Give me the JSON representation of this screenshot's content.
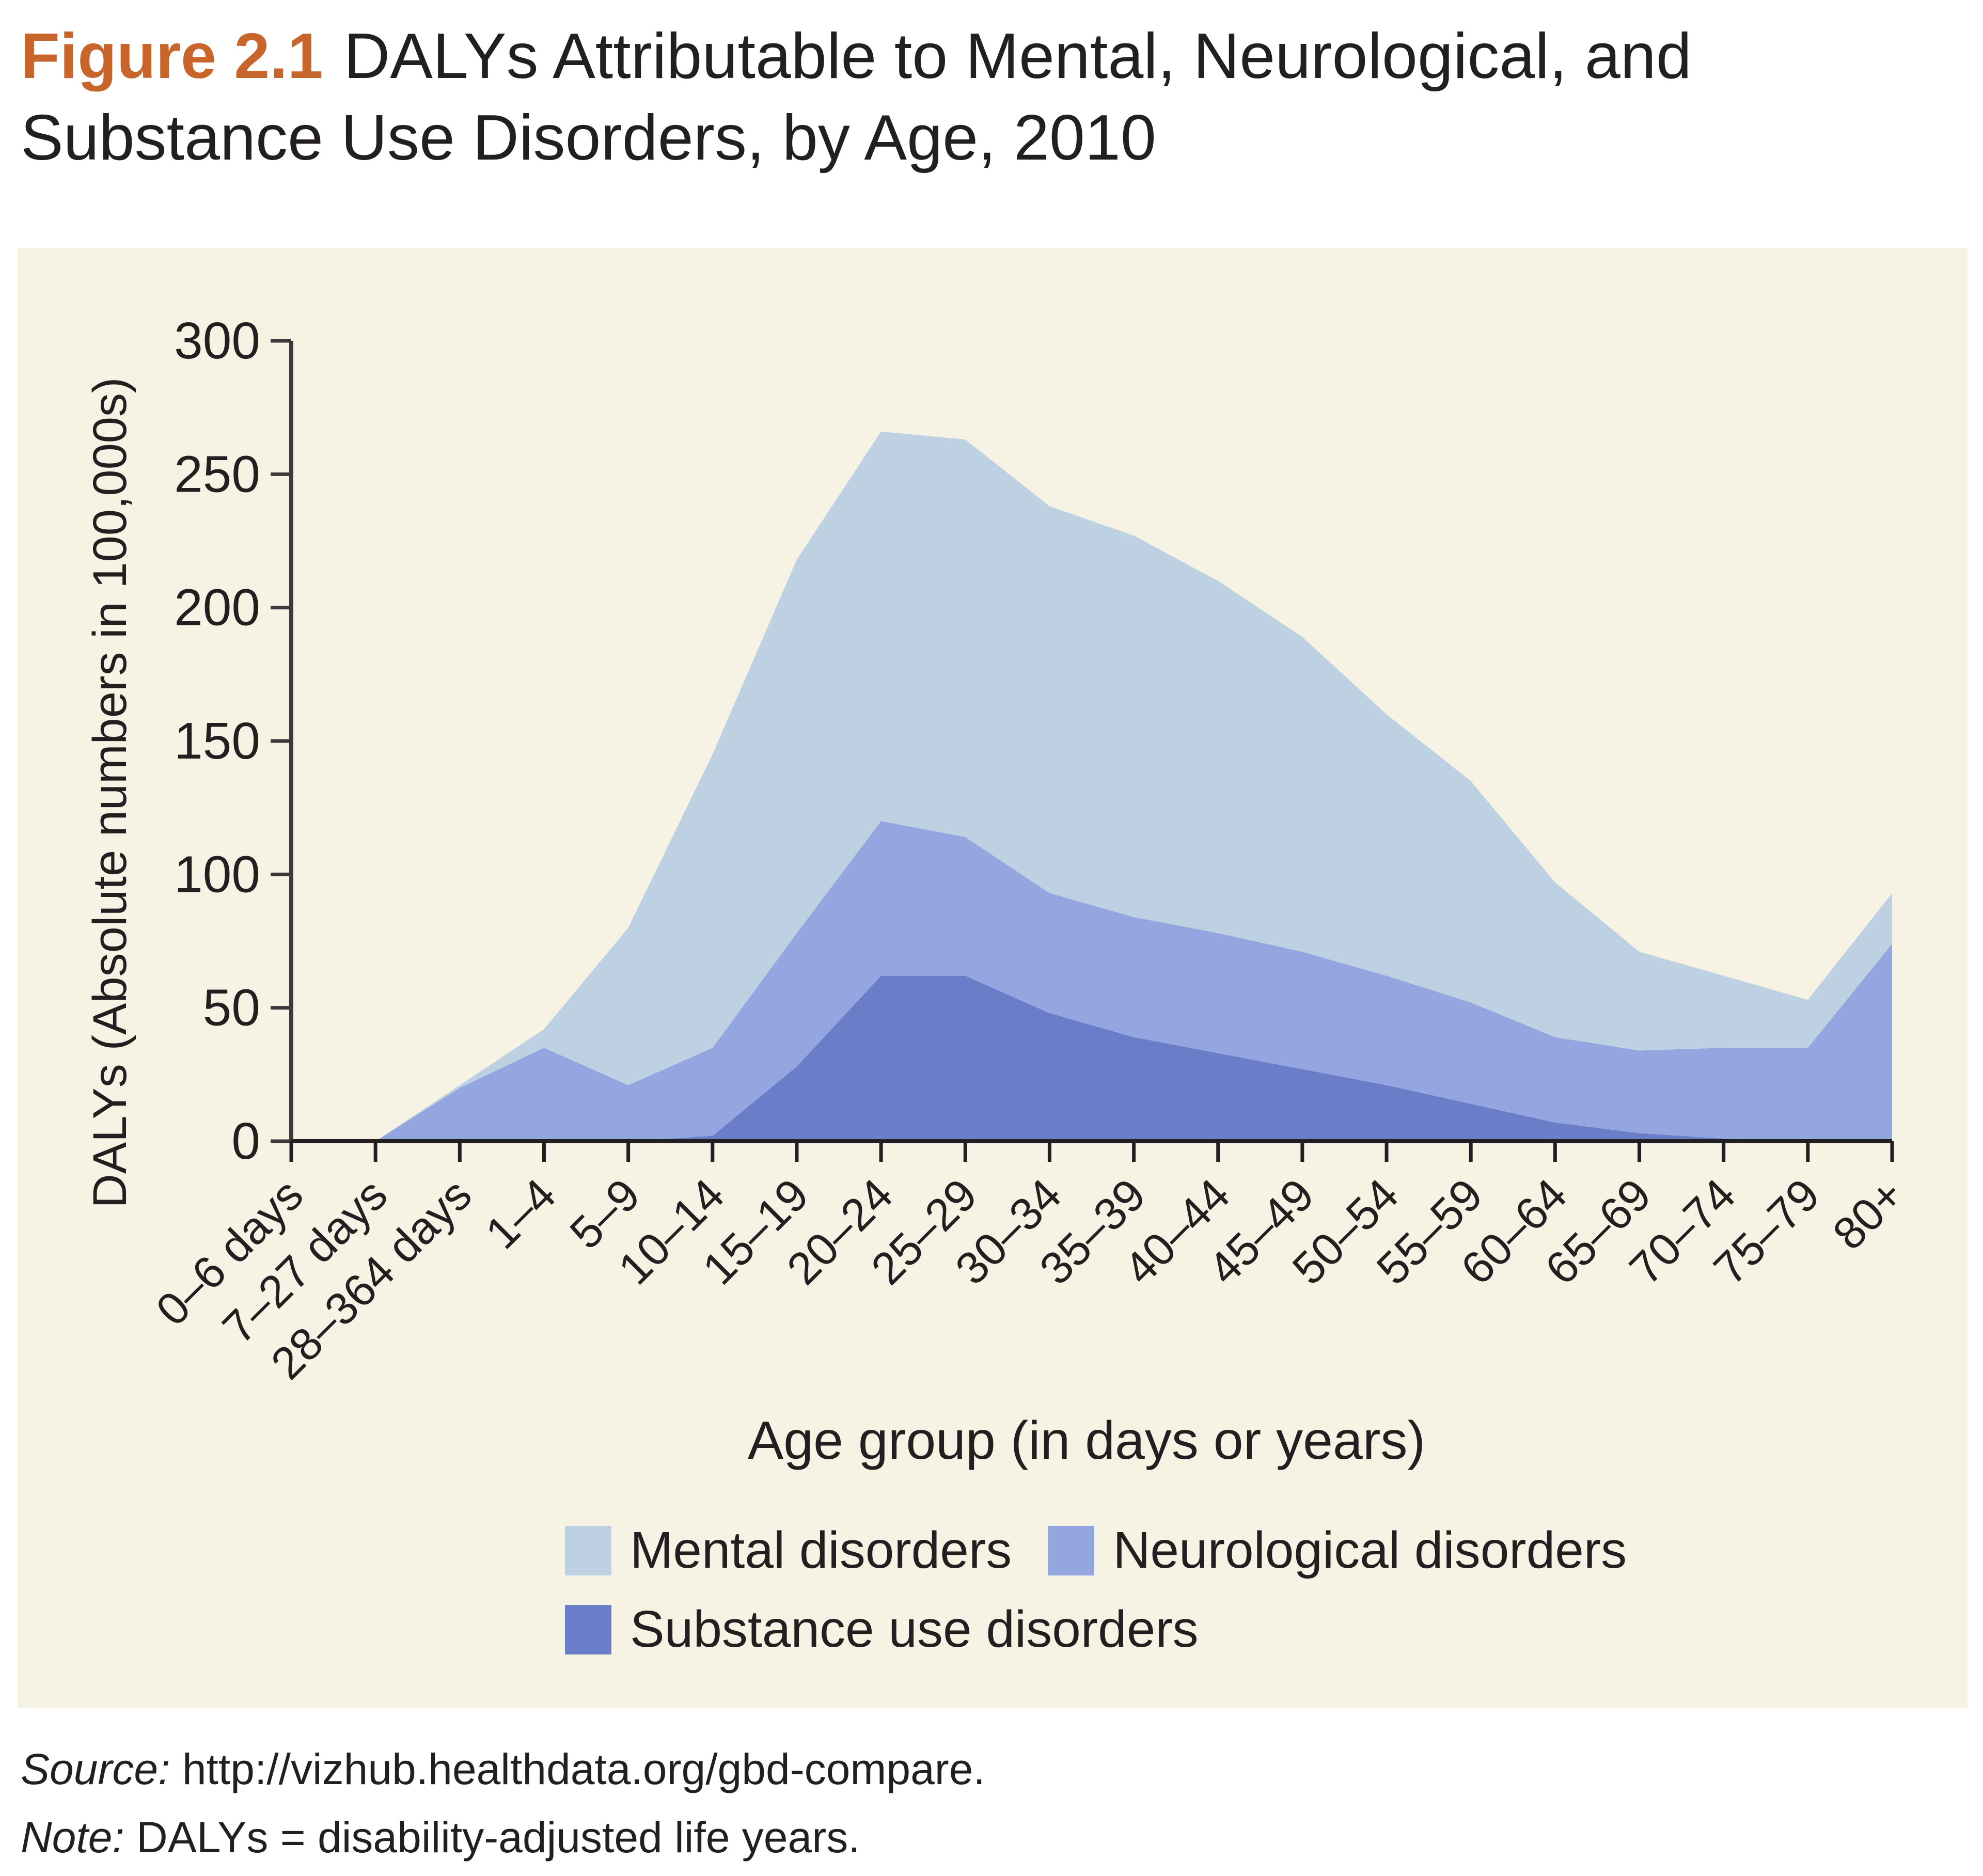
{
  "figure_label": "Figure 2.1",
  "chart_data": {
    "type": "area",
    "stacked": true,
    "title": "DALYs Attributable to Mental, Neurological, and Substance Use Disorders, by Age, 2010",
    "xlabel": "Age group (in days or years)",
    "ylabel": "DALYs (Absolute numbers in 100,000s)",
    "ylim": [
      0,
      300
    ],
    "yticks": [
      0,
      50,
      100,
      150,
      200,
      250,
      300
    ],
    "grid": false,
    "legend_position": "bottom",
    "categories": [
      "0–6 days",
      "7–27 days",
      "28–364 days",
      "1–4",
      "5–9",
      "10–14",
      "15–19",
      "20–24",
      "25–29",
      "30–34",
      "35–39",
      "40–44",
      "45–49",
      "50–54",
      "55–59",
      "60–64",
      "65–69",
      "70–74",
      "75–79",
      "80+"
    ],
    "series": [
      {
        "name": "Substance use disorders",
        "color": "#6b7cc8",
        "values": [
          0,
          0,
          0,
          0,
          0,
          2,
          28,
          62,
          62,
          48,
          39,
          33,
          27,
          21,
          14,
          7,
          3,
          1,
          0,
          0
        ]
      },
      {
        "name": "Neurological disorders",
        "color": "#94a6e0",
        "values": [
          0,
          0,
          20,
          35,
          21,
          33,
          50,
          58,
          52,
          45,
          45,
          45,
          44,
          41,
          38,
          32,
          31,
          34,
          35,
          74
        ]
      },
      {
        "name": "Mental disorders",
        "color": "#bdd1e3",
        "values": [
          0,
          0,
          1,
          7,
          59,
          110,
          140,
          146,
          149,
          145,
          143,
          132,
          118,
          98,
          83,
          58,
          37,
          27,
          18,
          19
        ]
      }
    ]
  },
  "legend": {
    "mental": "Mental disorders",
    "neurological": "Neurological disorders",
    "substance": "Substance use disorders"
  },
  "notes": {
    "source_label": "Source:",
    "source_text": "http://vizhub.healthdata.org/gbd-compare.",
    "note_label": "Note:",
    "note_text": "DALYs = disability-adjusted life years."
  }
}
